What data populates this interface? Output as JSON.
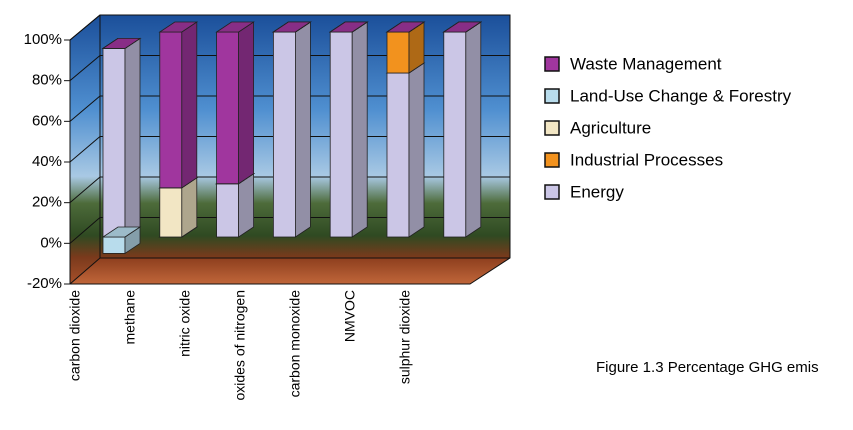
{
  "chart_data": {
    "type": "bar3d_stacked",
    "categories": [
      "carbon dioxide",
      "methane",
      "nitric oxide",
      "oxides of nitrogen",
      "carbon monoxide",
      "NMVOC",
      "sulphur dioxide"
    ],
    "series": [
      {
        "name": "Waste Management",
        "color": "#a0369e",
        "values": [
          0,
          76,
          74,
          0,
          0,
          0,
          0
        ]
      },
      {
        "name": "Land-Use Change & Forestry",
        "color": "#b8dcec",
        "values": [
          -8,
          0,
          0,
          0,
          0,
          0,
          0
        ]
      },
      {
        "name": "Agriculture",
        "color": "#f2e6c4",
        "values": [
          0,
          24,
          0,
          0,
          0,
          0,
          0
        ]
      },
      {
        "name": "Industrial Processes",
        "color": "#f2921e",
        "values": [
          0,
          0,
          0,
          0,
          0,
          20,
          0
        ]
      },
      {
        "name": "Energy",
        "color": "#cbc6e6",
        "values": [
          92,
          0,
          26,
          100,
          100,
          80,
          100
        ]
      }
    ],
    "ylim": [
      -20,
      100
    ],
    "yticks": [
      {
        "value": -20,
        "label": "-20%"
      },
      {
        "value": 0,
        "label": "0%"
      },
      {
        "value": 20,
        "label": "20%"
      },
      {
        "value": 40,
        "label": "40%"
      },
      {
        "value": 60,
        "label": "60%"
      },
      {
        "value": 80,
        "label": "80%"
      },
      {
        "value": 100,
        "label": "100%"
      }
    ],
    "grid": true,
    "caption": "Figure 1.3 Percentage GHG emis"
  }
}
